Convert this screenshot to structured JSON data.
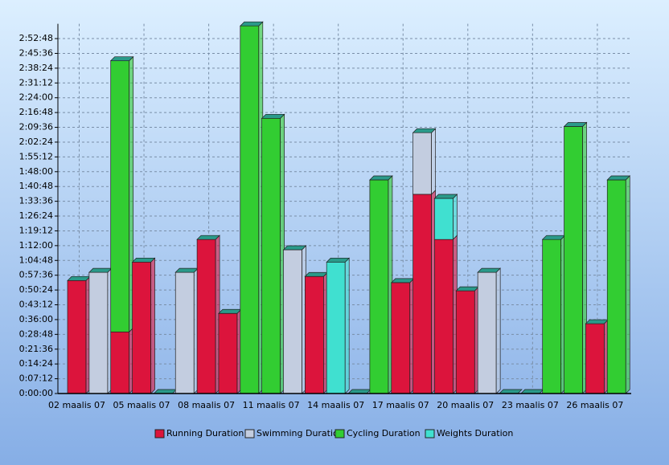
{
  "chart_data": {
    "type": "stacked_bar",
    "categories": [
      "02 maalis 07",
      null,
      null,
      "05 maalis 07",
      null,
      null,
      "08 maalis 07",
      null,
      null,
      "11 maalis 07",
      null,
      null,
      "14 maalis 07",
      null,
      null,
      "17 maalis 07",
      null,
      null,
      "20 maalis 07",
      null,
      null,
      "23 maalis 07",
      null,
      null,
      "26 maalis 07",
      null
    ],
    "series": [
      {
        "name": "Running Duration",
        "color": "#dc143c",
        "values": [
          55,
          0,
          30,
          64,
          0,
          0,
          75,
          39,
          0,
          0,
          0,
          57,
          0,
          0,
          0,
          54,
          97,
          75,
          50,
          0,
          0,
          0,
          0,
          0,
          34,
          0
        ]
      },
      {
        "name": "Swimming Duration",
        "color": "#c3cde0",
        "values": [
          0,
          59,
          0,
          0,
          0,
          59,
          0,
          0,
          0,
          0,
          70,
          0,
          0,
          0,
          0,
          0,
          30,
          0,
          0,
          59,
          0,
          0,
          0,
          0,
          0,
          0
        ]
      },
      {
        "name": "Cycling Duration",
        "color": "#32cd32",
        "values": [
          0,
          0,
          132,
          0,
          0,
          0,
          0,
          0,
          179,
          134,
          0,
          0,
          0,
          0,
          104,
          0,
          0,
          0,
          0,
          0,
          0,
          0,
          75,
          130,
          0,
          104
        ]
      },
      {
        "name": "Weights Duration",
        "color": "#40e0d0",
        "values": [
          0,
          0,
          0,
          0,
          0,
          0,
          0,
          0,
          0,
          0,
          0,
          0,
          64,
          0,
          0,
          0,
          0,
          20,
          0,
          0,
          0,
          0,
          0,
          0,
          0,
          0
        ]
      }
    ],
    "ylim": [
      0,
      180
    ],
    "yticks": [
      {
        "value": 0,
        "label": "0:00:00"
      },
      {
        "value": 7.2,
        "label": "0:07:12"
      },
      {
        "value": 14.4,
        "label": "0:14:24"
      },
      {
        "value": 21.6,
        "label": "0:21:36"
      },
      {
        "value": 28.8,
        "label": "0:28:48"
      },
      {
        "value": 36,
        "label": "0:36:00"
      },
      {
        "value": 43.2,
        "label": "0:43:12"
      },
      {
        "value": 50.4,
        "label": "0:50:24"
      },
      {
        "value": 57.6,
        "label": "0:57:36"
      },
      {
        "value": 64.8,
        "label": "1:04:48"
      },
      {
        "value": 72,
        "label": "1:12:00"
      },
      {
        "value": 79.2,
        "label": "1:19:12"
      },
      {
        "value": 86.4,
        "label": "1:26:24"
      },
      {
        "value": 93.6,
        "label": "1:33:36"
      },
      {
        "value": 100.8,
        "label": "1:40:48"
      },
      {
        "value": 108,
        "label": "1:48:00"
      },
      {
        "value": 115.2,
        "label": "1:55:12"
      },
      {
        "value": 122.4,
        "label": "2:02:24"
      },
      {
        "value": 129.6,
        "label": "2:09:36"
      },
      {
        "value": 136.8,
        "label": "2:16:48"
      },
      {
        "value": 144,
        "label": "2:24:00"
      },
      {
        "value": 151.2,
        "label": "2:31:12"
      },
      {
        "value": 158.4,
        "label": "2:38:24"
      },
      {
        "value": 165.6,
        "label": "2:45:36"
      },
      {
        "value": 172.8,
        "label": "2:52:48"
      }
    ],
    "grid": true,
    "legend": "bottom"
  }
}
